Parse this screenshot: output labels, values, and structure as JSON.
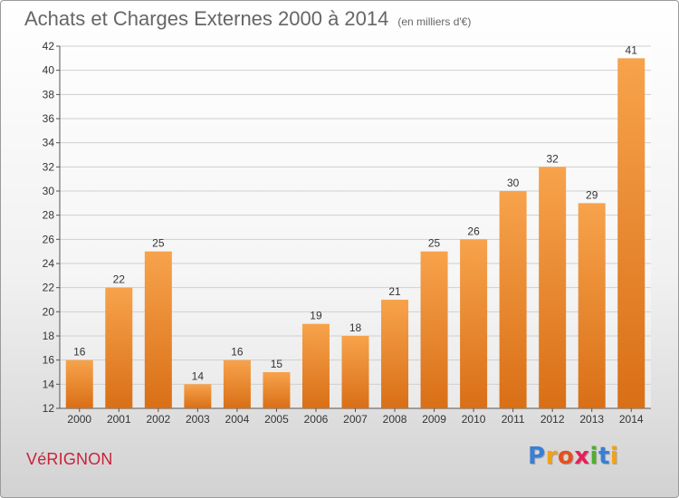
{
  "chart_data": {
    "type": "bar",
    "title": "Achats et Charges Externes 2000 à 2014",
    "unit_label": "(en milliers d'€)",
    "categories": [
      "2000",
      "2001",
      "2002",
      "2003",
      "2004",
      "2005",
      "2006",
      "2007",
      "2008",
      "2009",
      "2010",
      "2011",
      "2012",
      "2013",
      "2014"
    ],
    "values": [
      16,
      22,
      25,
      14,
      16,
      15,
      19,
      18,
      21,
      25,
      26,
      30,
      32,
      29,
      41
    ],
    "ylim": [
      12,
      42
    ],
    "yticks": [
      12,
      14,
      16,
      18,
      20,
      22,
      24,
      26,
      28,
      30,
      32,
      34,
      36,
      38,
      40,
      42
    ],
    "grid": true,
    "xlabel": "",
    "ylabel": "",
    "colors": {
      "bar_light": "#f7a34c",
      "bar_dark": "#d96f16",
      "grid": "#cfcfcf"
    }
  },
  "commune": "VéRIGNON",
  "logo": {
    "letters": [
      "P",
      "r",
      "o",
      "x",
      "i",
      "t",
      "i"
    ],
    "colors": [
      "#3a7fd5",
      "#f0a21c",
      "#e84e1b",
      "#e81e58",
      "#4fae32",
      "#3a7fd5",
      "#f0a21c"
    ]
  }
}
